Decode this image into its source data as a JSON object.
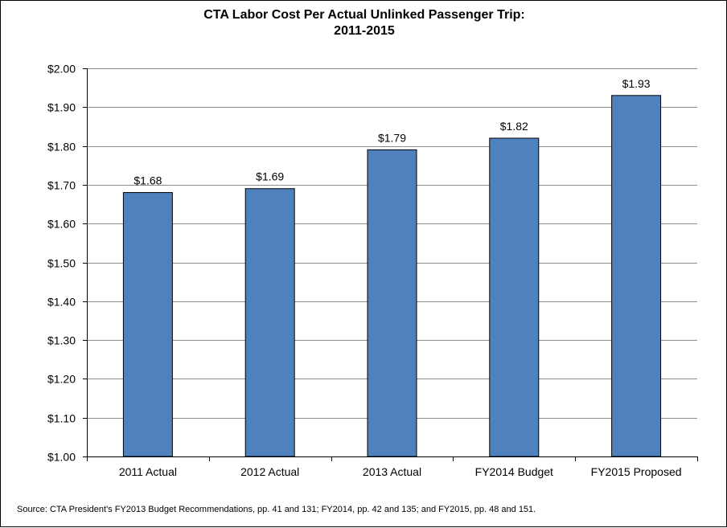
{
  "chart_data": {
    "type": "bar",
    "title": "CTA Labor Cost Per Actual Unlinked Passenger Trip:",
    "subtitle": "2011-2015",
    "categories": [
      "2011 Actual",
      "2012 Actual",
      "2013 Actual",
      "FY2014 Budget",
      "FY2015 Proposed"
    ],
    "values": [
      1.68,
      1.69,
      1.79,
      1.82,
      1.93
    ],
    "data_labels": [
      "$1.68",
      "$1.69",
      "$1.79",
      "$1.82",
      "$1.93"
    ],
    "y_ticks": [
      "$1.00",
      "$1.10",
      "$1.20",
      "$1.30",
      "$1.40",
      "$1.50",
      "$1.60",
      "$1.70",
      "$1.80",
      "$1.90",
      "$2.00"
    ],
    "ylim": [
      1.0,
      2.0
    ],
    "xlabel": "",
    "ylabel": "",
    "grid": true,
    "bar_color": "#4f81bd",
    "source": "Source: CTA President's FY2013 Budget Recommendations, pp. 41 and 131; FY2014, pp. 42 and 135; and FY2015, pp. 48 and 151."
  }
}
